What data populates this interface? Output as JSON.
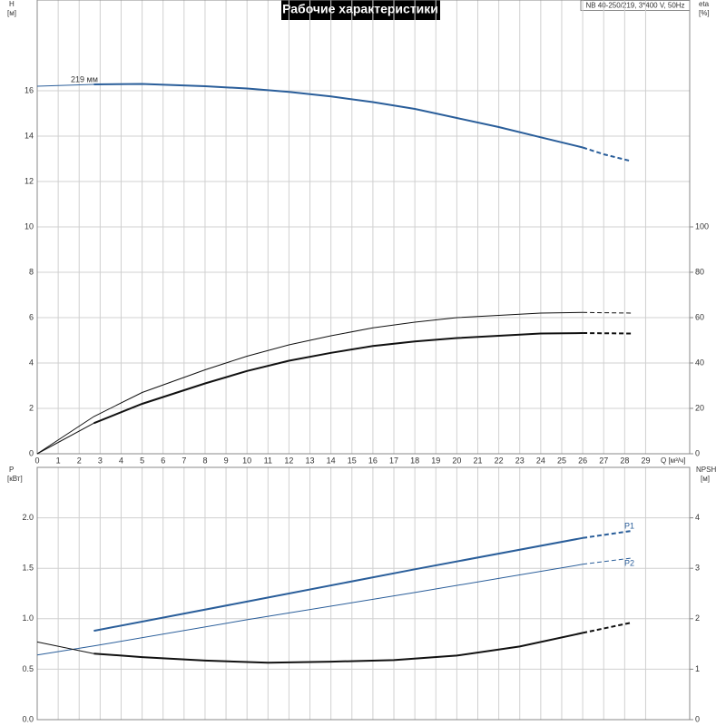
{
  "chart_data": [
    {
      "type": "line",
      "title": "Рабочие характеристики",
      "subtitle": "NB 40-250/219, 3*400 V, 50Hz",
      "x_label": "Q [м³/ч]",
      "y_label": "H",
      "y_unit": "[м]",
      "y2_label": "eta",
      "y2_unit": "[%]",
      "xlim": [
        0,
        31.1
      ],
      "xticks": [
        0,
        1,
        2,
        3,
        4,
        5,
        6,
        7,
        8,
        9,
        10,
        11,
        12,
        13,
        14,
        15,
        16,
        17,
        18,
        19,
        20,
        21,
        22,
        23,
        24,
        25,
        26,
        27,
        28,
        29
      ],
      "ylim": [
        0,
        20
      ],
      "yticks": [
        0,
        2,
        4,
        6,
        8,
        10,
        12,
        14,
        16
      ],
      "y2lim": [
        0,
        200
      ],
      "y2ticks": [
        0,
        20,
        40,
        60,
        80,
        100
      ],
      "grid": true,
      "annotations": [
        "219 мм"
      ],
      "series": [
        {
          "axis": "y",
          "color": "#2a5e9a",
          "width": 1,
          "style": "solid",
          "x": [
            0,
            2.7
          ],
          "values": [
            16.2,
            16.28
          ]
        },
        {
          "axis": "y",
          "color": "#2a5e9a",
          "width": 2,
          "style": "solid",
          "x": [
            2.7,
            5,
            8,
            10,
            12,
            14,
            16,
            18,
            20,
            22,
            24,
            26
          ],
          "values": [
            16.28,
            16.3,
            16.2,
            16.1,
            15.95,
            15.75,
            15.5,
            15.2,
            14.8,
            14.4,
            13.95,
            13.5
          ]
        },
        {
          "axis": "y",
          "color": "#2a5e9a",
          "width": 2,
          "style": "dashed",
          "x": [
            26,
            27,
            28.3
          ],
          "values": [
            13.5,
            13.2,
            12.9
          ]
        },
        {
          "axis": "y2",
          "color": "#111111",
          "width": 1,
          "style": "solid",
          "x": [
            0,
            2.7,
            5,
            8,
            10,
            12,
            14,
            16,
            18,
            20,
            22,
            24,
            26
          ],
          "values": [
            0,
            16.4,
            27,
            37,
            43,
            48,
            52,
            55.5,
            58,
            60,
            61,
            62,
            62.3
          ]
        },
        {
          "axis": "y2",
          "color": "#111111",
          "width": 1,
          "style": "dashed",
          "x": [
            26,
            28.3
          ],
          "values": [
            62.3,
            62
          ]
        },
        {
          "axis": "y2",
          "color": "#111111",
          "width": 1,
          "style": "solid",
          "x": [
            0,
            2.7
          ],
          "values": [
            0,
            13.5
          ]
        },
        {
          "axis": "y2",
          "color": "#111111",
          "width": 2,
          "style": "solid",
          "x": [
            2.7,
            5,
            8,
            10,
            12,
            14,
            16,
            18,
            20,
            22,
            24,
            26
          ],
          "values": [
            13.5,
            22,
            31,
            36.5,
            41,
            44.5,
            47.5,
            49.5,
            51,
            52,
            53,
            53.2
          ]
        },
        {
          "axis": "y2",
          "color": "#111111",
          "width": 2,
          "style": "dashed",
          "x": [
            26,
            28.3
          ],
          "values": [
            53.2,
            53
          ]
        }
      ]
    },
    {
      "type": "line",
      "y_label": "P",
      "y_unit": "[кВт]",
      "y2_label": "NPSH",
      "y2_unit": "[м]",
      "xlim": [
        0,
        31.1
      ],
      "ylim": [
        0,
        2.5
      ],
      "yticks": [
        {
          "value": 0,
          "label": "0.0"
        },
        0.5,
        {
          "value": 1,
          "label": "1.0"
        },
        1.5,
        {
          "value": 2,
          "label": "2.0"
        }
      ],
      "y2lim": [
        0,
        5
      ],
      "y2ticks": [
        0,
        1,
        2,
        3,
        4
      ],
      "grid": true,
      "annotations": [
        "P1",
        "P2"
      ],
      "series": [
        {
          "axis": "y",
          "color": "#2a5e9a",
          "width": 2,
          "style": "solid",
          "x": [
            2.7,
            10,
            18,
            26
          ],
          "values": [
            0.88,
            1.17,
            1.49,
            1.8
          ]
        },
        {
          "axis": "y",
          "color": "#2a5e9a",
          "width": 2,
          "style": "dashed",
          "x": [
            26,
            28.3
          ],
          "values": [
            1.8,
            1.87
          ]
        },
        {
          "axis": "y",
          "color": "#2a5e9a",
          "width": 1,
          "style": "solid",
          "x": [
            0,
            2.7,
            10,
            18,
            26
          ],
          "values": [
            0.64,
            0.73,
            0.99,
            1.26,
            1.54
          ]
        },
        {
          "axis": "y",
          "color": "#2a5e9a",
          "width": 1,
          "style": "dashed",
          "x": [
            26,
            28.3
          ],
          "values": [
            1.54,
            1.6
          ]
        },
        {
          "axis": "y2",
          "color": "#111111",
          "width": 1,
          "style": "solid",
          "x": [
            0,
            2.7
          ],
          "values": [
            1.54,
            1.31
          ]
        },
        {
          "axis": "y2",
          "color": "#111111",
          "width": 2,
          "style": "solid",
          "x": [
            2.7,
            5,
            8,
            11,
            14,
            17,
            20,
            23,
            26
          ],
          "values": [
            1.31,
            1.24,
            1.17,
            1.13,
            1.15,
            1.18,
            1.27,
            1.45,
            1.72
          ]
        },
        {
          "axis": "y2",
          "color": "#111111",
          "width": 2,
          "style": "dashed",
          "x": [
            26,
            28.3
          ],
          "values": [
            1.72,
            1.92
          ]
        }
      ]
    }
  ]
}
